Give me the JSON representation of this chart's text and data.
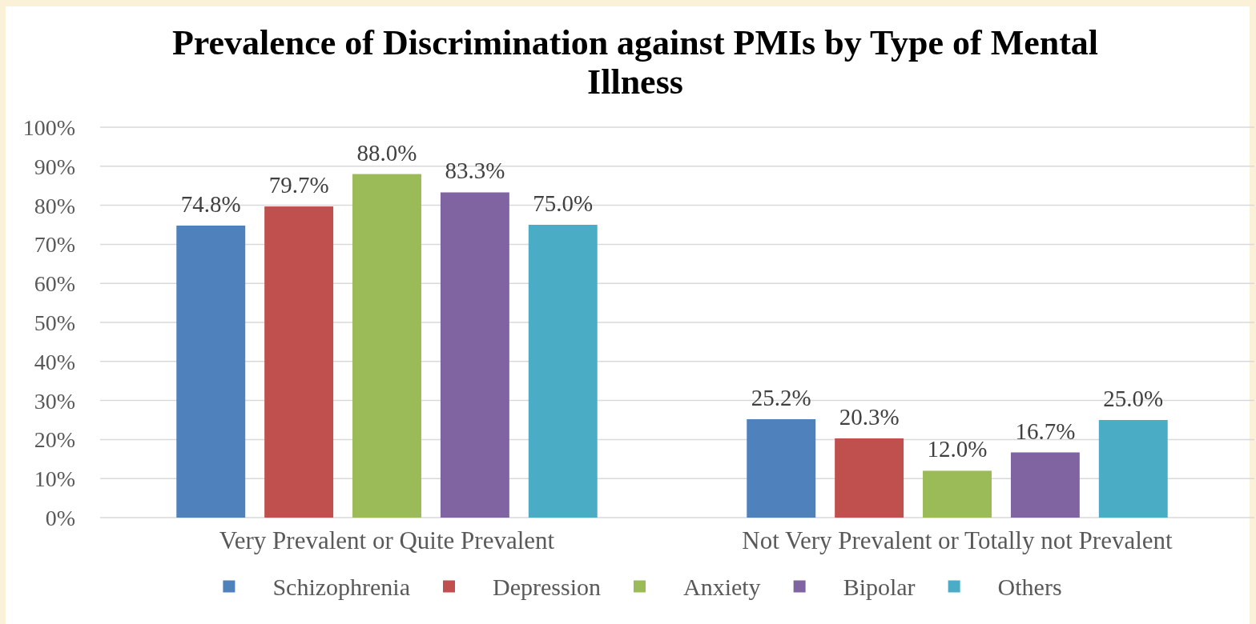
{
  "chart_data": {
    "type": "bar",
    "title": "Prevalence of Discrimination against PMIs by Type of Mental Illness",
    "categories": [
      "Very Prevalent or Quite Prevalent",
      "Not Very Prevalent or Totally not Prevalent"
    ],
    "series": [
      {
        "name": "Schizophrenia",
        "color": "#4f81bd",
        "values": [
          74.8,
          25.2
        ],
        "value_labels": [
          "74.8%",
          "25.2%"
        ]
      },
      {
        "name": "Depression",
        "color": "#c0504d",
        "values": [
          79.7,
          20.3
        ],
        "value_labels": [
          "79.7%",
          "20.3%"
        ]
      },
      {
        "name": "Anxiety",
        "color": "#9bbb59",
        "values": [
          88.0,
          12.0
        ],
        "value_labels": [
          "88.0%",
          "12.0%"
        ]
      },
      {
        "name": "Bipolar",
        "color": "#8064a2",
        "values": [
          83.3,
          16.7
        ],
        "value_labels": [
          "83.3%",
          "16.7%"
        ]
      },
      {
        "name": "Others",
        "color": "#4bacc6",
        "values": [
          75.0,
          25.0
        ],
        "value_labels": [
          "75.0%",
          "25.0%"
        ]
      }
    ],
    "ylim": [
      0,
      100
    ],
    "yticks": [
      {
        "value": 0,
        "label": "0%"
      },
      {
        "value": 10,
        "label": "10%"
      },
      {
        "value": 20,
        "label": "20%"
      },
      {
        "value": 30,
        "label": "30%"
      },
      {
        "value": 40,
        "label": "40%"
      },
      {
        "value": 50,
        "label": "50%"
      },
      {
        "value": 60,
        "label": "60%"
      },
      {
        "value": 70,
        "label": "70%"
      },
      {
        "value": 80,
        "label": "80%"
      },
      {
        "value": 90,
        "label": "90%"
      },
      {
        "value": 100,
        "label": "100%"
      }
    ],
    "grid": "y",
    "legend": "bottom"
  }
}
